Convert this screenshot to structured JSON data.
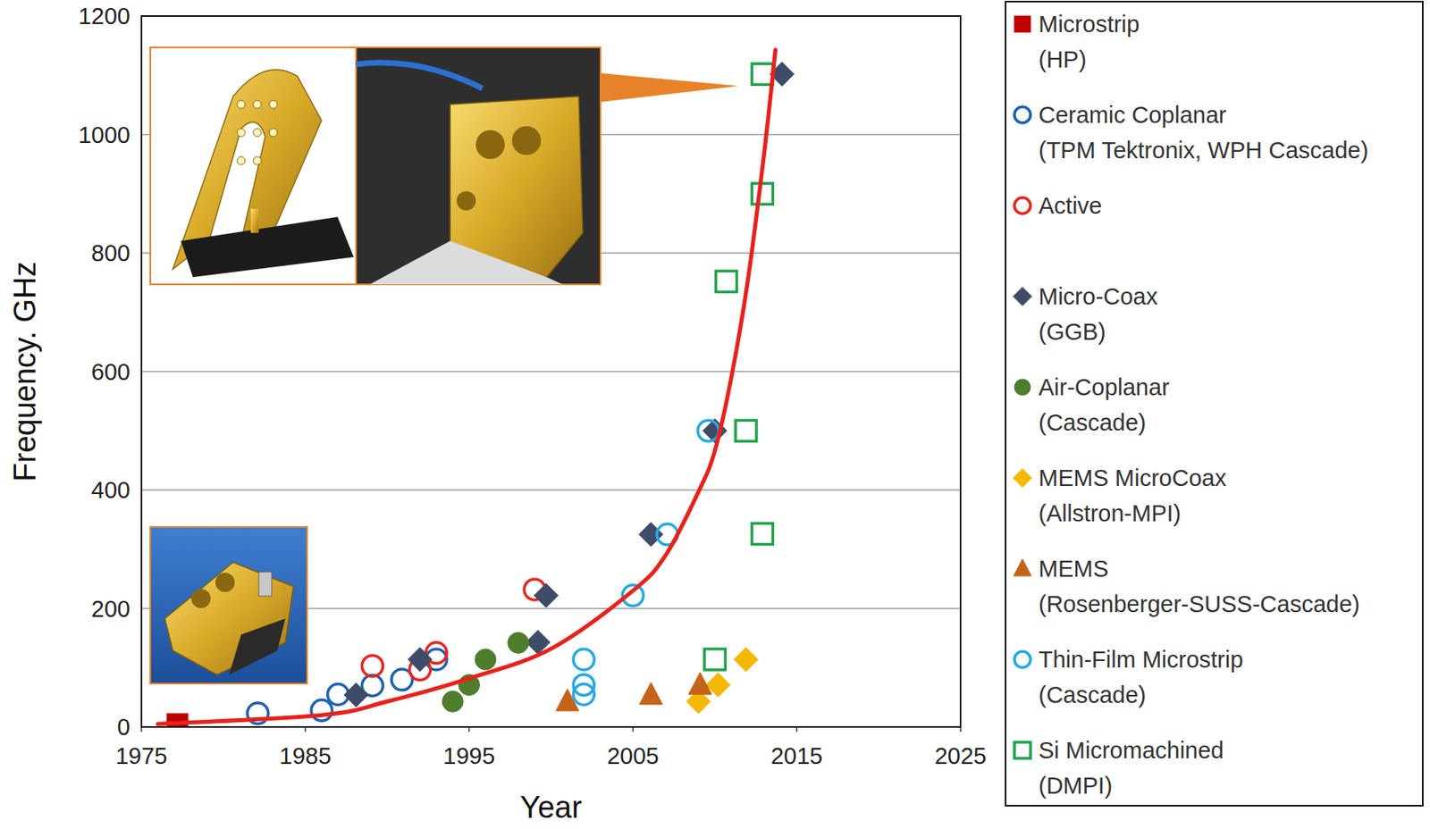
{
  "chart_data": {
    "type": "scatter",
    "x_label": "Year",
    "y_label": "Frequency. GHz",
    "xlim": [
      1975,
      2025
    ],
    "xticks": [
      1975,
      1985,
      1995,
      2005,
      2015,
      2025
    ],
    "ylim": [
      0,
      1200
    ],
    "yticks": [
      0,
      200,
      400,
      600,
      800,
      1000,
      1200
    ],
    "grid": true,
    "legend": "outside-right",
    "series": [
      {
        "name": "Microstrip (HP)",
        "color": "#c00000",
        "marker": "square",
        "x": [
          1977.2
        ],
        "values": [
          5
        ]
      },
      {
        "name": "Ceramic Coplanar (TPM Tektronix, WPH Cascade)",
        "color": "#1f62b0",
        "marker": "open-circle",
        "x": [
          1982.1,
          1986,
          1987,
          1989.1,
          1990.9,
          1993
        ],
        "values": [
          23,
          28,
          55,
          70,
          80,
          114
        ]
      },
      {
        "name": "Active",
        "color": "#e8251f",
        "marker": "open-circle",
        "x": [
          1989.1,
          1992,
          1993,
          1999
        ],
        "values": [
          103,
          97,
          125,
          232
        ]
      },
      {
        "name": "Micro-Coax (GGB)",
        "color": "#3f4c68",
        "marker": "diamond",
        "x": [
          1988.1,
          1992,
          1999.2,
          1999.7,
          2006.1,
          2010,
          2014.1
        ],
        "values": [
          54,
          114,
          143,
          222,
          325,
          500,
          1102
        ]
      },
      {
        "name": "Air-Coplanar (Cascade)",
        "color": "#4e7d2c",
        "marker": "circle",
        "x": [
          1994,
          1995,
          1996,
          1998
        ],
        "values": [
          43,
          71,
          114,
          142
        ]
      },
      {
        "name": "MEMS MicroCoax (Allstron-MPI)",
        "color": "#f5b800",
        "marker": "diamond",
        "x": [
          2009,
          2010.2,
          2011.9
        ],
        "values": [
          43,
          71,
          114
        ]
      },
      {
        "name": "MEMS (Rosenberger-SUSS-Cascade)",
        "color": "#c5631b",
        "marker": "triangle",
        "x": [
          2001,
          2006.1,
          2009.1
        ],
        "values": [
          43,
          54,
          71
        ]
      },
      {
        "name": "Thin-Film Microstrip (Cascade)",
        "color": "#25a9e0",
        "marker": "open-circle",
        "x": [
          2002,
          2002,
          2002,
          2005,
          2007.1,
          2009.6
        ],
        "values": [
          114,
          71,
          55,
          222,
          325,
          500
        ]
      },
      {
        "name": "Si Micromachined (DMPI)",
        "color": "#22a24a",
        "marker": "open-square",
        "x": [
          2010,
          2011.9,
          2010.7,
          2012.9,
          2012.9,
          2012.9
        ],
        "values": [
          114,
          500,
          752,
          326,
          900,
          1102
        ]
      }
    ],
    "trend": {
      "color": "#e8211b",
      "line_style": "solid",
      "x": [
        1976,
        1986,
        1990,
        1995,
        2000,
        2005,
        2007,
        2009,
        2010,
        2011,
        2012,
        2013,
        2013.7
      ],
      "values": [
        5,
        20,
        43,
        82,
        132,
        230,
        290,
        397,
        466,
        589,
        751,
        966,
        1143
      ]
    }
  }
}
